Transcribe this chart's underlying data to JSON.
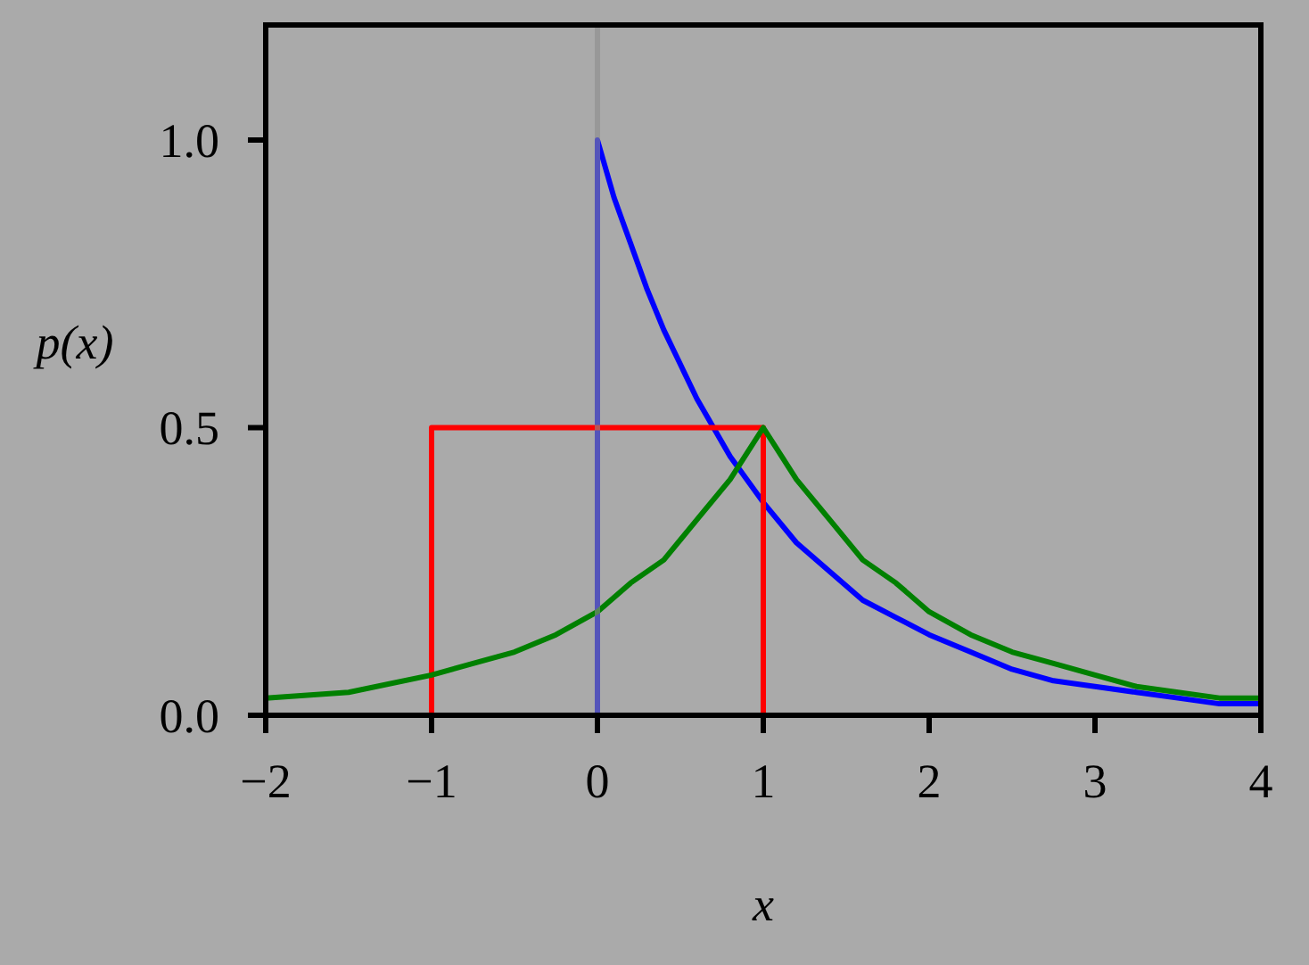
{
  "chart_data": {
    "type": "line",
    "xlabel": "x",
    "ylabel": "p(x)",
    "xlim": [
      -2,
      4
    ],
    "ylim": [
      0,
      1.2
    ],
    "xticks": [
      {
        "value": -2,
        "label": "−2"
      },
      {
        "value": -1,
        "label": "−1"
      },
      0,
      1,
      2,
      3,
      4
    ],
    "yticks": [
      {
        "value": 0,
        "label": "0.0"
      },
      0.5,
      {
        "value": 1,
        "label": "1.0"
      }
    ],
    "grid": false,
    "series": [
      {
        "color": "#0000ff",
        "x": [
          0,
          0,
          0.1,
          0.2,
          0.3,
          0.4,
          0.5,
          0.6,
          0.7,
          0.8,
          0.9,
          1,
          1.2,
          1.4,
          1.6,
          1.8,
          2,
          2.25,
          2.5,
          2.75,
          3,
          3.25,
          3.5,
          3.75,
          4
        ],
        "values": [
          0,
          1,
          0.9,
          0.82,
          0.74,
          0.67,
          0.61,
          0.55,
          0.5,
          0.45,
          0.41,
          0.37,
          0.3,
          0.25,
          0.2,
          0.17,
          0.14,
          0.11,
          0.08,
          0.06,
          0.05,
          0.04,
          0.03,
          0.02,
          0.02
        ]
      },
      {
        "color": "#ff0000",
        "x": [
          -1,
          -1,
          1,
          1
        ],
        "values": [
          0,
          0.5,
          0.5,
          0
        ]
      },
      {
        "color": "#008000",
        "x": [
          -2,
          -1.5,
          -1,
          -0.75,
          -0.5,
          -0.25,
          0,
          0.2,
          0.4,
          0.6,
          0.8,
          1,
          1.2,
          1.4,
          1.6,
          1.8,
          2,
          2.25,
          2.5,
          2.75,
          3,
          3.25,
          3.5,
          3.75,
          4
        ],
        "values": [
          0.03,
          0.04,
          0.07,
          0.09,
          0.11,
          0.14,
          0.18,
          0.23,
          0.27,
          0.34,
          0.41,
          0.5,
          0.41,
          0.34,
          0.27,
          0.23,
          0.18,
          0.14,
          0.11,
          0.09,
          0.07,
          0.05,
          0.04,
          0.03,
          0.03
        ]
      }
    ],
    "ref_lines": [
      {
        "axis": "x",
        "value": 0,
        "color": "#8c8c8c"
      }
    ]
  }
}
